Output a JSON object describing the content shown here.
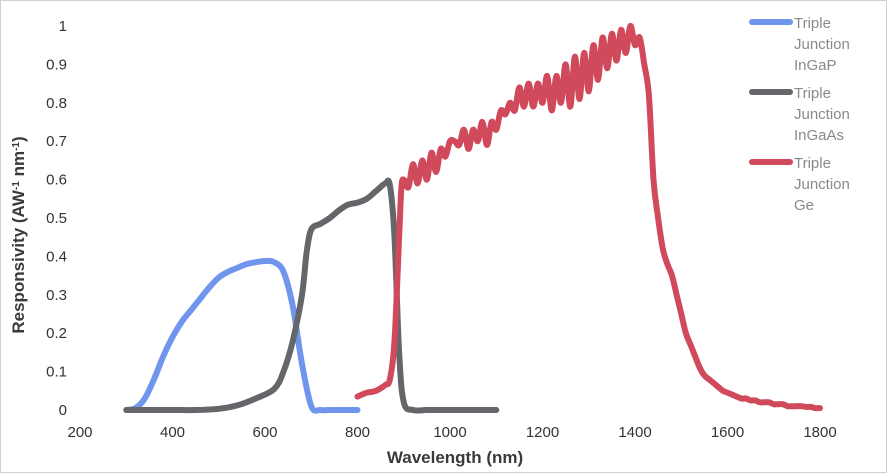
{
  "chart_data": {
    "type": "line",
    "title": "",
    "xlabel": "Wavelength (nm)",
    "ylabel_parts": {
      "prefix": "Responsivity (AW",
      "sup1": "-1",
      "middle": " nm",
      "sup2": "-1",
      "suffix": ")"
    },
    "xlim": [
      200,
      1800
    ],
    "ylim": [
      0,
      1
    ],
    "x_ticks": [
      200,
      400,
      600,
      800,
      1000,
      1200,
      1400,
      1600,
      1800
    ],
    "y_ticks": [
      0,
      0.1,
      0.2,
      0.3,
      0.4,
      0.5,
      0.6,
      0.7,
      0.8,
      0.9,
      1
    ],
    "x_tick_labels": [
      "200",
      "400",
      "600",
      "800",
      "1000",
      "1200",
      "1400",
      "1600",
      "1800"
    ],
    "y_tick_labels": [
      "0",
      "0.1",
      "0.2",
      "0.3",
      "0.4",
      "0.5",
      "0.6",
      "0.7",
      "0.8",
      "0.9",
      "1"
    ],
    "grid": false,
    "legend_position": "right",
    "series": [
      {
        "name": "Triple Junction InGaP",
        "legend_lines": [
          "Triple",
          "Junction",
          "InGaP"
        ],
        "color": "#6f95ec",
        "x": [
          300,
          320,
          340,
          360,
          380,
          400,
          420,
          440,
          460,
          480,
          500,
          520,
          540,
          560,
          580,
          600,
          620,
          640,
          660,
          680,
          700,
          720,
          740,
          760,
          780,
          800
        ],
        "y": [
          0,
          0.005,
          0.03,
          0.08,
          0.14,
          0.19,
          0.23,
          0.26,
          0.29,
          0.32,
          0.345,
          0.36,
          0.37,
          0.38,
          0.385,
          0.388,
          0.385,
          0.36,
          0.27,
          0.12,
          0.01,
          0,
          0,
          0,
          0,
          0
        ]
      },
      {
        "name": "Triple Junction InGaAs",
        "legend_lines": [
          "Triple",
          "Junction",
          "InGaAs"
        ],
        "color": "#646669",
        "x": [
          300,
          350,
          400,
          450,
          500,
          540,
          580,
          620,
          640,
          660,
          680,
          690,
          700,
          720,
          740,
          760,
          780,
          800,
          820,
          840,
          860,
          870,
          880,
          890,
          900,
          920,
          950,
          1000,
          1050,
          1100
        ],
        "y": [
          0,
          0,
          0,
          0,
          0.003,
          0.012,
          0.03,
          0.055,
          0.1,
          0.18,
          0.3,
          0.41,
          0.47,
          0.485,
          0.5,
          0.52,
          0.535,
          0.54,
          0.55,
          0.57,
          0.59,
          0.585,
          0.45,
          0.15,
          0.02,
          0,
          0,
          0,
          0,
          0
        ]
      },
      {
        "name": "Triple Junction Ge",
        "legend_lines": [
          "Triple",
          "Junction",
          "Ge"
        ],
        "color": "#d04a5c",
        "x": [
          800,
          820,
          840,
          860,
          870,
          880,
          890,
          895,
          900,
          910,
          920,
          930,
          940,
          950,
          960,
          970,
          980,
          990,
          1000,
          1010,
          1020,
          1030,
          1040,
          1050,
          1060,
          1070,
          1080,
          1090,
          1100,
          1110,
          1120,
          1130,
          1140,
          1150,
          1160,
          1170,
          1180,
          1190,
          1200,
          1210,
          1220,
          1230,
          1240,
          1250,
          1260,
          1270,
          1280,
          1290,
          1300,
          1310,
          1320,
          1330,
          1340,
          1350,
          1360,
          1370,
          1380,
          1390,
          1400,
          1410,
          1420,
          1430,
          1440,
          1450,
          1460,
          1470,
          1480,
          1490,
          1500,
          1510,
          1520,
          1530,
          1540,
          1550,
          1560,
          1570,
          1580,
          1590,
          1600,
          1610,
          1620,
          1630,
          1640,
          1650,
          1660,
          1670,
          1680,
          1690,
          1700,
          1710,
          1720,
          1730,
          1740,
          1750,
          1760,
          1770,
          1780,
          1790,
          1800
        ],
        "y": [
          0.035,
          0.045,
          0.05,
          0.065,
          0.08,
          0.18,
          0.45,
          0.58,
          0.6,
          0.58,
          0.64,
          0.59,
          0.65,
          0.6,
          0.67,
          0.62,
          0.68,
          0.66,
          0.7,
          0.7,
          0.69,
          0.73,
          0.68,
          0.73,
          0.7,
          0.75,
          0.69,
          0.75,
          0.73,
          0.78,
          0.77,
          0.8,
          0.78,
          0.84,
          0.79,
          0.85,
          0.79,
          0.85,
          0.8,
          0.87,
          0.78,
          0.87,
          0.8,
          0.9,
          0.79,
          0.92,
          0.81,
          0.93,
          0.83,
          0.95,
          0.86,
          0.97,
          0.89,
          0.98,
          0.91,
          0.99,
          0.93,
          1.0,
          0.95,
          0.97,
          0.9,
          0.82,
          0.6,
          0.5,
          0.42,
          0.38,
          0.35,
          0.3,
          0.25,
          0.2,
          0.17,
          0.14,
          0.11,
          0.09,
          0.08,
          0.07,
          0.06,
          0.05,
          0.045,
          0.04,
          0.035,
          0.03,
          0.03,
          0.025,
          0.025,
          0.02,
          0.02,
          0.02,
          0.015,
          0.015,
          0.015,
          0.01,
          0.01,
          0.01,
          0.01,
          0.008,
          0.008,
          0.005,
          0.005
        ]
      }
    ]
  }
}
